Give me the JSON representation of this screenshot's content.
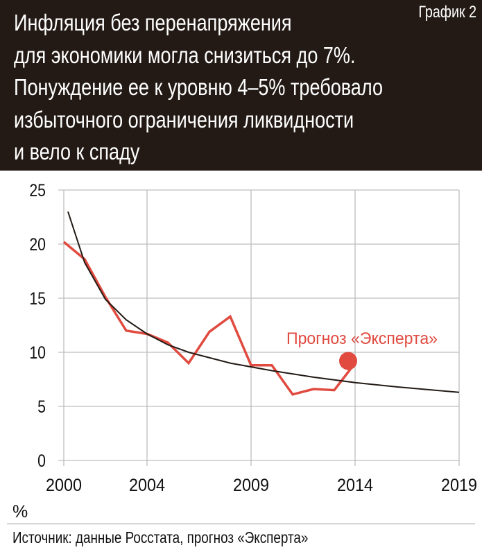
{
  "header": {
    "title_lines": [
      "Инфляция без перенапряжения",
      "для экономики могла  снизиться до 7%.",
      "Понуждение ее к уровню 4–5% требовало",
      "избыточного ограничения ликвидности",
      "и вело к спаду"
    ],
    "tag": "График 2",
    "background": "#231a15"
  },
  "footer": {
    "source": "Источник: данные Росстата, прогноз «Эксперта»"
  },
  "chart_data": {
    "type": "line",
    "title": "",
    "unit_label": "%",
    "xlim": [
      2000,
      2019
    ],
    "ylim": [
      0,
      25
    ],
    "x_ticks": [
      "2000",
      "2004",
      "2009",
      "2014",
      "2019"
    ],
    "y_ticks": [
      "0",
      "5",
      "10",
      "15",
      "20",
      "25"
    ],
    "grid": true,
    "series": [
      {
        "color": "#e04a3f",
        "x": [
          2000,
          2001,
          2002,
          2003,
          2004,
          2005,
          2006,
          2007,
          2008,
          2009,
          2010,
          2011,
          2012,
          2013,
          2014
        ],
        "y": [
          20.2,
          18.6,
          15.1,
          12.0,
          11.7,
          10.9,
          9.0,
          11.9,
          13.3,
          8.8,
          8.8,
          6.1,
          6.6,
          6.5,
          9.0
        ]
      },
      {
        "color": "#231a15",
        "x": [
          2000.2,
          2001,
          2002,
          2003,
          2004,
          2005,
          2006,
          2008,
          2010,
          2012,
          2014,
          2016,
          2019
        ],
        "y": [
          23.0,
          18.3,
          14.9,
          13.0,
          11.7,
          10.7,
          10.0,
          9.0,
          8.3,
          7.7,
          7.2,
          6.8,
          6.3
        ]
      }
    ],
    "annotations": [
      {
        "text": "Прогноз «Эксперта»",
        "x": 2014,
        "y": 9.2,
        "color": "#e04a3f"
      }
    ]
  }
}
